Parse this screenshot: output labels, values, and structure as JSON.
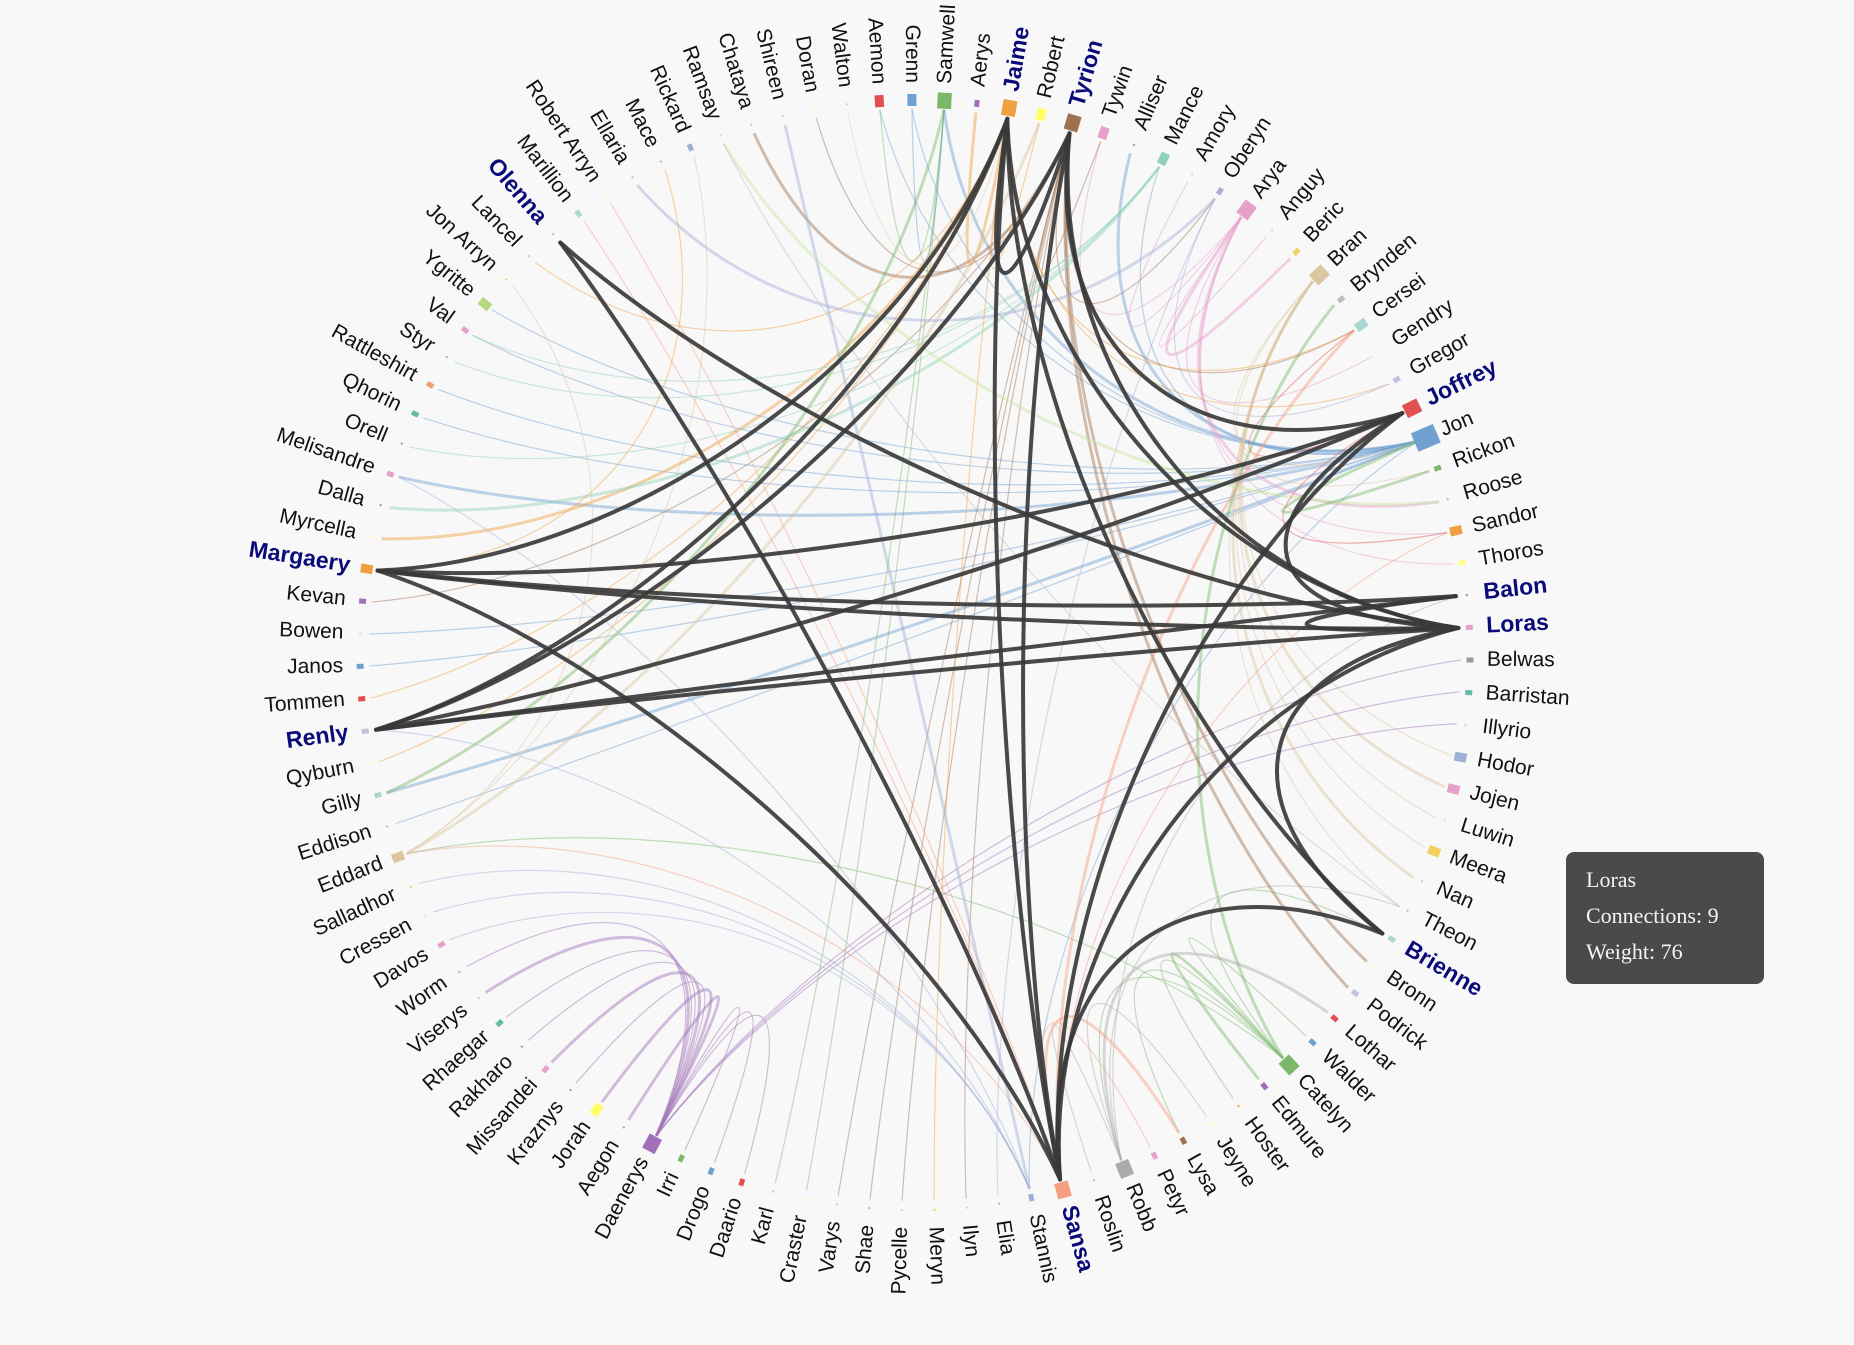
{
  "nodes": [
    {
      "name": "Tyrion",
      "color": "#a0714f",
      "mark": "big",
      "hl": true
    },
    {
      "name": "Tywin",
      "color": "#e7a0cc",
      "mark": "med"
    },
    {
      "name": "Alliser",
      "color": "#999999",
      "mark": "tiny"
    },
    {
      "name": "Mance",
      "color": "#8fd1bb",
      "mark": "med"
    },
    {
      "name": "Amory",
      "color": "#e8d3a8",
      "mark": "tiny"
    },
    {
      "name": "Oberyn",
      "color": "#a9aed6",
      "mark": "small"
    },
    {
      "name": "Arya",
      "color": "#e7a0cc",
      "mark": "big"
    },
    {
      "name": "Anguy",
      "color": "#c8e6a0",
      "mark": "tiny"
    },
    {
      "name": "Beric",
      "color": "#f0d060",
      "mark": "small"
    },
    {
      "name": "Bran",
      "color": "#dcc6a0",
      "mark": "big"
    },
    {
      "name": "Brynden",
      "color": "#bbbbbb",
      "mark": "small"
    },
    {
      "name": "Cersei",
      "color": "#a8d8d0",
      "mark": "med"
    },
    {
      "name": "Gendry",
      "color": "#ffffb0",
      "mark": "tiny"
    },
    {
      "name": "Gregor",
      "color": "#c5c0e0",
      "mark": "small"
    },
    {
      "name": "Joffrey",
      "color": "#e05050",
      "mark": "big",
      "hl": true
    },
    {
      "name": "Jon",
      "color": "#6fa0d0",
      "mark": "huge"
    },
    {
      "name": "Rickon",
      "color": "#7bb86a",
      "mark": "small"
    },
    {
      "name": "Roose",
      "color": "#bbbbbb",
      "mark": "tiny"
    },
    {
      "name": "Sandor",
      "color": "#f0a040",
      "mark": "med"
    },
    {
      "name": "Thoros",
      "color": "#ffff88",
      "mark": "small"
    },
    {
      "name": "Balon",
      "color": "#b09070",
      "mark": "tiny",
      "hl": true
    },
    {
      "name": "Loras",
      "color": "#e7a0cc",
      "mark": "small",
      "hl": true
    },
    {
      "name": "Belwas",
      "color": "#999999",
      "mark": "small"
    },
    {
      "name": "Barristan",
      "color": "#66bba8",
      "mark": "small"
    },
    {
      "name": "Illyrio",
      "color": "#f0c8a0",
      "mark": "tiny"
    },
    {
      "name": "Hodor",
      "color": "#9fb0d8",
      "mark": "med"
    },
    {
      "name": "Jojen",
      "color": "#e7a0cc",
      "mark": "med"
    },
    {
      "name": "Luwin",
      "color": "#e8e8a0",
      "mark": "tiny"
    },
    {
      "name": "Meera",
      "color": "#f0d060",
      "mark": "med"
    },
    {
      "name": "Nan",
      "color": "#dcc6a0",
      "mark": "tiny"
    },
    {
      "name": "Theon",
      "color": "#bbbbbb",
      "mark": "tiny"
    },
    {
      "name": "Brienne",
      "color": "#a8d8d0",
      "mark": "small",
      "hl": true
    },
    {
      "name": "Bronn",
      "color": "#ffffb0",
      "mark": "tiny"
    },
    {
      "name": "Podrick",
      "color": "#c5c0e0",
      "mark": "small"
    },
    {
      "name": "Lothar",
      "color": "#e05050",
      "mark": "small"
    },
    {
      "name": "Walder",
      "color": "#6fa0d0",
      "mark": "small"
    },
    {
      "name": "Catelyn",
      "color": "#7bb86a",
      "mark": "big"
    },
    {
      "name": "Edmure",
      "color": "#a070b8",
      "mark": "small"
    },
    {
      "name": "Hoster",
      "color": "#f0a040",
      "mark": "tiny"
    },
    {
      "name": "Jeyne",
      "color": "#ffff88",
      "mark": "tiny"
    },
    {
      "name": "Lysa",
      "color": "#a0714f",
      "mark": "small"
    },
    {
      "name": "Petyr",
      "color": "#e7a0cc",
      "mark": "small"
    },
    {
      "name": "Robb",
      "color": "#aaaaaa",
      "mark": "big"
    },
    {
      "name": "Roslin",
      "color": "#8fd1bb",
      "mark": "tiny"
    },
    {
      "name": "Sansa",
      "color": "#f4a080",
      "mark": "big",
      "hl": true
    },
    {
      "name": "Stannis",
      "color": "#9fb0d8",
      "mark": "small"
    },
    {
      "name": "Elia",
      "color": "#e7a0cc",
      "mark": "tiny"
    },
    {
      "name": "Ilyn",
      "color": "#c8e6a0",
      "mark": "tiny"
    },
    {
      "name": "Meryn",
      "color": "#f0d060",
      "mark": "tiny"
    },
    {
      "name": "Pycelle",
      "color": "#e8d3a8",
      "mark": "tiny"
    },
    {
      "name": "Shae",
      "color": "#bbbbbb",
      "mark": "tiny"
    },
    {
      "name": "Varys",
      "color": "#a8d8d0",
      "mark": "tiny"
    },
    {
      "name": "Craster",
      "color": "#ffffb0",
      "mark": "tiny"
    },
    {
      "name": "Karl",
      "color": "#c5c0e0",
      "mark": "tiny"
    },
    {
      "name": "Daario",
      "color": "#e05050",
      "mark": "small"
    },
    {
      "name": "Drogo",
      "color": "#6fa0d0",
      "mark": "small"
    },
    {
      "name": "Irri",
      "color": "#7bb86a",
      "mark": "small"
    },
    {
      "name": "Daenerys",
      "color": "#a070b8",
      "mark": "big"
    },
    {
      "name": "Aegon",
      "color": "#f0a040",
      "mark": "tiny"
    },
    {
      "name": "Jorah",
      "color": "#ffff66",
      "mark": "med"
    },
    {
      "name": "Kraznys",
      "color": "#b09070",
      "mark": "tiny"
    },
    {
      "name": "Missandei",
      "color": "#e7a0cc",
      "mark": "small"
    },
    {
      "name": "Rakharo",
      "color": "#999999",
      "mark": "tiny"
    },
    {
      "name": "Rhaegar",
      "color": "#66bba8",
      "mark": "small"
    },
    {
      "name": "Viserys",
      "color": "#f0c8a0",
      "mark": "tiny"
    },
    {
      "name": "Worm",
      "color": "#9fb0d8",
      "mark": "tiny"
    },
    {
      "name": "Davos",
      "color": "#e7a0cc",
      "mark": "small"
    },
    {
      "name": "Cressen",
      "color": "#e8e8a0",
      "mark": "tiny"
    },
    {
      "name": "Salladhor",
      "color": "#f0d060",
      "mark": "tiny"
    },
    {
      "name": "Eddard",
      "color": "#dcc6a0",
      "mark": "med"
    },
    {
      "name": "Eddison",
      "color": "#bbbbbb",
      "mark": "tiny"
    },
    {
      "name": "Gilly",
      "color": "#a8d8d0",
      "mark": "small"
    },
    {
      "name": "Qyburn",
      "color": "#ffffb0",
      "mark": "tiny"
    },
    {
      "name": "Renly",
      "color": "#c5c0e0",
      "mark": "small",
      "hl": true
    },
    {
      "name": "Tommen",
      "color": "#e05050",
      "mark": "small"
    },
    {
      "name": "Janos",
      "color": "#6fa0d0",
      "mark": "small"
    },
    {
      "name": "Bowen",
      "color": "#c8e6a0",
      "mark": "tiny"
    },
    {
      "name": "Kevan",
      "color": "#a070b8",
      "mark": "small"
    },
    {
      "name": "Margaery",
      "color": "#f0a040",
      "mark": "med",
      "hl": true
    },
    {
      "name": "Myrcella",
      "color": "#ffff88",
      "mark": "tiny"
    },
    {
      "name": "Dalla",
      "color": "#b09070",
      "mark": "tiny"
    },
    {
      "name": "Melisandre",
      "color": "#e7a0cc",
      "mark": "small"
    },
    {
      "name": "Orell",
      "color": "#999999",
      "mark": "tiny"
    },
    {
      "name": "Qhorin",
      "color": "#66bba8",
      "mark": "small"
    },
    {
      "name": "Rattleshirt",
      "color": "#f0a070",
      "mark": "small"
    },
    {
      "name": "Styr",
      "color": "#9fb0d8",
      "mark": "tiny"
    },
    {
      "name": "Val",
      "color": "#e7a0cc",
      "mark": "small"
    },
    {
      "name": "Ygritte",
      "color": "#b8d880",
      "mark": "med"
    },
    {
      "name": "Jon Arryn",
      "color": "#f0d060",
      "mark": "tiny"
    },
    {
      "name": "Lancel",
      "color": "#dcc6a0",
      "mark": "tiny"
    },
    {
      "name": "Olenna",
      "color": "#bbbbbb",
      "mark": "tiny",
      "hl": true
    },
    {
      "name": "Marillion",
      "color": "#a8d8d0",
      "mark": "small"
    },
    {
      "name": "Robert Arryn",
      "color": "#ffffb0",
      "mark": "tiny"
    },
    {
      "name": "Ellaria",
      "color": "#c5c0e0",
      "mark": "tiny"
    },
    {
      "name": "Mace",
      "color": "#e8a0a0",
      "mark": "tiny"
    },
    {
      "name": "Rickard",
      "color": "#9fb0d8",
      "mark": "small"
    },
    {
      "name": "Ramsay",
      "color": "#c8e6a0",
      "mark": "tiny"
    },
    {
      "name": "Chataya",
      "color": "#c5c0e0",
      "mark": "tiny"
    },
    {
      "name": "Shireen",
      "color": "#f0c8a0",
      "mark": "tiny"
    },
    {
      "name": "Doran",
      "color": "#ffffb0",
      "mark": "tiny"
    },
    {
      "name": "Walton",
      "color": "#e8d3a8",
      "mark": "tiny"
    },
    {
      "name": "Aemon",
      "color": "#e05050",
      "mark": "med"
    },
    {
      "name": "Grenn",
      "color": "#6fa0d0",
      "mark": "med"
    },
    {
      "name": "Samwell",
      "color": "#7bb86a",
      "mark": "big"
    },
    {
      "name": "Aerys",
      "color": "#a070b8",
      "mark": "small"
    },
    {
      "name": "Jaime",
      "color": "#f0a040",
      "mark": "big",
      "hl": true
    },
    {
      "name": "Robert",
      "color": "#ffff66",
      "mark": "med"
    }
  ],
  "highlighted_links": [
    [
      "Loras",
      "Jaime"
    ],
    [
      "Loras",
      "Tyrion"
    ],
    [
      "Loras",
      "Sansa"
    ],
    [
      "Loras",
      "Margaery"
    ],
    [
      "Loras",
      "Renly"
    ],
    [
      "Loras",
      "Olenna"
    ],
    [
      "Loras",
      "Joffrey"
    ],
    [
      "Loras",
      "Balon"
    ],
    [
      "Loras",
      "Brienne"
    ],
    [
      "Jaime",
      "Tyrion"
    ],
    [
      "Jaime",
      "Sansa"
    ],
    [
      "Jaime",
      "Margaery"
    ],
    [
      "Jaime",
      "Renly"
    ],
    [
      "Jaime",
      "Brienne"
    ],
    [
      "Tyrion",
      "Joffrey"
    ],
    [
      "Tyrion",
      "Sansa"
    ],
    [
      "Tyrion",
      "Renly"
    ],
    [
      "Sansa",
      "Margaery"
    ],
    [
      "Sansa",
      "Joffrey"
    ],
    [
      "Sansa",
      "Olenna"
    ],
    [
      "Sansa",
      "Brienne"
    ],
    [
      "Margaery",
      "Joffrey"
    ],
    [
      "Margaery",
      "Balon"
    ],
    [
      "Renly",
      "Balon"
    ],
    [
      "Renly",
      "Joffrey"
    ]
  ],
  "background_links": [
    [
      "Jon",
      "Samwell"
    ],
    [
      "Jon",
      "Mance"
    ],
    [
      "Jon",
      "Ygritte"
    ],
    [
      "Jon",
      "Qhorin"
    ],
    [
      "Jon",
      "Gilly"
    ],
    [
      "Jon",
      "Grenn"
    ],
    [
      "Jon",
      "Aemon"
    ],
    [
      "Jon",
      "Janos"
    ],
    [
      "Jon",
      "Alliser"
    ],
    [
      "Jon",
      "Eddison"
    ],
    [
      "Jon",
      "Rattleshirt"
    ],
    [
      "Jon",
      "Val"
    ],
    [
      "Jon",
      "Melisandre"
    ],
    [
      "Jon",
      "Stannis"
    ],
    [
      "Jon",
      "Bowen"
    ],
    [
      "Arya",
      "Sandor"
    ],
    [
      "Arya",
      "Beric"
    ],
    [
      "Arya",
      "Gendry"
    ],
    [
      "Arya",
      "Thoros"
    ],
    [
      "Arya",
      "Anguy"
    ],
    [
      "Arya",
      "Roose"
    ],
    [
      "Arya",
      "Amory"
    ],
    [
      "Arya",
      "Tywin"
    ],
    [
      "Bran",
      "Hodor"
    ],
    [
      "Bran",
      "Jojen"
    ],
    [
      "Bran",
      "Meera"
    ],
    [
      "Bran",
      "Luwin"
    ],
    [
      "Bran",
      "Rickon"
    ],
    [
      "Bran",
      "Nan"
    ],
    [
      "Bran",
      "Theon"
    ],
    [
      "Bran",
      "Jon"
    ],
    [
      "Catelyn",
      "Robb"
    ],
    [
      "Catelyn",
      "Edmure"
    ],
    [
      "Catelyn",
      "Hoster"
    ],
    [
      "Catelyn",
      "Lysa"
    ],
    [
      "Catelyn",
      "Walder"
    ],
    [
      "Catelyn",
      "Brynden"
    ],
    [
      "Catelyn",
      "Eddard"
    ],
    [
      "Catelyn",
      "Brienne"
    ],
    [
      "Robb",
      "Roslin"
    ],
    [
      "Robb",
      "Lothar"
    ],
    [
      "Robb",
      "Jeyne"
    ],
    [
      "Robb",
      "Theon"
    ],
    [
      "Robb",
      "Balon"
    ],
    [
      "Daenerys",
      "Jorah"
    ],
    [
      "Daenerys",
      "Drogo"
    ],
    [
      "Daenerys",
      "Irri"
    ],
    [
      "Daenerys",
      "Daario"
    ],
    [
      "Daenerys",
      "Missandei"
    ],
    [
      "Daenerys",
      "Kraznys"
    ],
    [
      "Daenerys",
      "Barristan"
    ],
    [
      "Daenerys",
      "Belwas"
    ],
    [
      "Daenerys",
      "Viserys"
    ],
    [
      "Daenerys",
      "Rakharo"
    ],
    [
      "Daenerys",
      "Illyrio"
    ],
    [
      "Daenerys",
      "Worm"
    ],
    [
      "Daenerys",
      "Aegon"
    ],
    [
      "Daenerys",
      "Rhaegar"
    ],
    [
      "Tyrion",
      "Tywin"
    ],
    [
      "Tyrion",
      "Cersei"
    ],
    [
      "Tyrion",
      "Bronn"
    ],
    [
      "Tyrion",
      "Shae"
    ],
    [
      "Tyrion",
      "Varys"
    ],
    [
      "Tyrion",
      "Pycelle"
    ],
    [
      "Tyrion",
      "Podrick"
    ],
    [
      "Tyrion",
      "Oberyn"
    ],
    [
      "Tyrion",
      "Kevan"
    ],
    [
      "Tyrion",
      "Ilyn"
    ],
    [
      "Tyrion",
      "Chataya"
    ],
    [
      "Tyrion",
      "Doran"
    ],
    [
      "Jaime",
      "Cersei"
    ],
    [
      "Jaime",
      "Robert"
    ],
    [
      "Jaime",
      "Aerys"
    ],
    [
      "Jaime",
      "Gregor"
    ],
    [
      "Jaime",
      "Meryn"
    ],
    [
      "Jaime",
      "Tommen"
    ],
    [
      "Jaime",
      "Myrcella"
    ],
    [
      "Jaime",
      "Qyburn"
    ],
    [
      "Jaime",
      "Lancel"
    ],
    [
      "Sansa",
      "Petyr"
    ],
    [
      "Sansa",
      "Lysa"
    ],
    [
      "Sansa",
      "Robert Arryn"
    ],
    [
      "Sansa",
      "Marillion"
    ],
    [
      "Sansa",
      "Sandor"
    ],
    [
      "Sansa",
      "Cersei"
    ],
    [
      "Sansa",
      "Eddard"
    ],
    [
      "Stannis",
      "Davos"
    ],
    [
      "Stannis",
      "Melisandre"
    ],
    [
      "Stannis",
      "Shireen"
    ],
    [
      "Stannis",
      "Salladhor"
    ],
    [
      "Stannis",
      "Cressen"
    ],
    [
      "Stannis",
      "Renly"
    ],
    [
      "Samwell",
      "Gilly"
    ],
    [
      "Samwell",
      "Craster"
    ],
    [
      "Samwell",
      "Karl"
    ],
    [
      "Samwell",
      "Aemon"
    ],
    [
      "Mance",
      "Dalla"
    ],
    [
      "Mance",
      "Styr"
    ],
    [
      "Mance",
      "Orell"
    ],
    [
      "Mance",
      "Val"
    ],
    [
      "Eddard",
      "Robert"
    ],
    [
      "Eddard",
      "Jon Arryn"
    ],
    [
      "Eddard",
      "Rickard"
    ],
    [
      "Oberyn",
      "Elia"
    ],
    [
      "Oberyn",
      "Ellaria"
    ],
    [
      "Oberyn",
      "Gregor"
    ],
    [
      "Margaery",
      "Mace"
    ],
    [
      "Walton",
      "Jaime"
    ],
    [
      "Ramsay",
      "Roose"
    ],
    [
      "Theon",
      "Ramsay"
    ],
    [
      "Joffrey",
      "Sandor"
    ],
    [
      "Joffrey",
      "Cersei"
    ],
    [
      "Rickon",
      "Jon"
    ],
    [
      "Grenn",
      "Samwell"
    ]
  ],
  "tooltip": {
    "name": "Loras",
    "connections": "Connections: 9",
    "weight": "Weight: 76"
  }
}
